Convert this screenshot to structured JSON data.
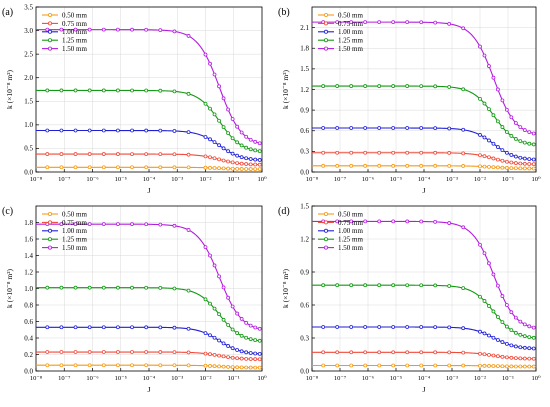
{
  "chart_data": [
    {
      "type": "line",
      "panel_label": "(a)",
      "xlabel": "J",
      "ylabel": "k (×10⁻⁸ m²)",
      "x_scale": "log",
      "xlim": [
        1e-08,
        1
      ],
      "ylim": [
        0,
        3.5
      ],
      "yticks": [
        0,
        0.5,
        1.0,
        1.5,
        2.0,
        2.5,
        3.0,
        3.5
      ],
      "yticks_labels": [
        "0.0",
        "0.5",
        "1.0",
        "1.5",
        "2.0",
        "2.5",
        "3.0",
        "3.5"
      ],
      "xticks_labels": [
        "10⁻⁸",
        "10⁻⁷",
        "10⁻⁶",
        "10⁻⁵",
        "10⁻⁴",
        "10⁻³",
        "10⁻²",
        "10⁻¹",
        "10⁰"
      ],
      "grid": true,
      "legend": "top-left",
      "series": [
        {
          "name": "0.50 mm",
          "color": "#f59a16",
          "plateau": 0.1,
          "end": 0.06
        },
        {
          "name": "0.75 mm",
          "color": "#f04a3a",
          "plateau": 0.38,
          "end": 0.15
        },
        {
          "name": "1.00 mm",
          "color": "#1f1fd6",
          "plateau": 0.88,
          "end": 0.24
        },
        {
          "name": "1.25 mm",
          "color": "#139913",
          "plateau": 1.73,
          "end": 0.41
        },
        {
          "name": "1.50 mm",
          "color": "#b41de0",
          "plateau": 3.02,
          "end": 0.55
        }
      ]
    },
    {
      "type": "line",
      "panel_label": "(b)",
      "xlabel": "J",
      "ylabel": "k (×10⁻⁸ m²)",
      "x_scale": "log",
      "xlim": [
        1e-08,
        1
      ],
      "ylim": [
        0,
        2.4
      ],
      "yticks": [
        0,
        0.3,
        0.6,
        0.9,
        1.2,
        1.5,
        1.8,
        2.1
      ],
      "yticks_labels": [
        "0.0",
        "0.3",
        "0.6",
        "0.9",
        "1.2",
        "1.5",
        "1.8",
        "2.1"
      ],
      "xticks_labels": [
        "10⁻⁸",
        "10⁻⁷",
        "10⁻⁶",
        "10⁻⁵",
        "10⁻⁴",
        "10⁻³",
        "10⁻²",
        "10⁻¹",
        "10⁰"
      ],
      "grid": true,
      "legend": "top-left",
      "series": [
        {
          "name": "0.50 mm",
          "color": "#f59a16",
          "plateau": 0.09,
          "end": 0.05
        },
        {
          "name": "0.75 mm",
          "color": "#f04a3a",
          "plateau": 0.28,
          "end": 0.11
        },
        {
          "name": "1.00 mm",
          "color": "#1f1fd6",
          "plateau": 0.64,
          "end": 0.17
        },
        {
          "name": "1.25 mm",
          "color": "#139913",
          "plateau": 1.25,
          "end": 0.38
        },
        {
          "name": "1.50 mm",
          "color": "#b41de0",
          "plateau": 2.18,
          "end": 0.52
        }
      ]
    },
    {
      "type": "line",
      "panel_label": "(c)",
      "xlabel": "J",
      "ylabel": "k (×10⁻⁸ m²)",
      "x_scale": "log",
      "xlim": [
        1e-08,
        1
      ],
      "ylim": [
        0,
        2.0
      ],
      "yticks": [
        0,
        0.2,
        0.4,
        0.6,
        0.8,
        1.0,
        1.2,
        1.4,
        1.6,
        1.8
      ],
      "yticks_labels": [
        "0.0",
        "0.2",
        "0.4",
        "0.6",
        "0.8",
        "1.0",
        "1.2",
        "1.4",
        "1.6",
        "1.8"
      ],
      "xticks_labels": [
        "10⁻⁸",
        "10⁻⁷",
        "10⁻⁶",
        "10⁻⁵",
        "10⁻⁴",
        "10⁻³",
        "10⁻²",
        "10⁻¹",
        "10⁰"
      ],
      "grid": true,
      "legend": "top-left",
      "series": [
        {
          "name": "0.50 mm",
          "color": "#f59a16",
          "plateau": 0.07,
          "end": 0.04
        },
        {
          "name": "0.75 mm",
          "color": "#f04a3a",
          "plateau": 0.23,
          "end": 0.14
        },
        {
          "name": "1.00 mm",
          "color": "#1f1fd6",
          "plateau": 0.53,
          "end": 0.2
        },
        {
          "name": "1.25 mm",
          "color": "#139913",
          "plateau": 1.01,
          "end": 0.35
        },
        {
          "name": "1.50 mm",
          "color": "#b41de0",
          "plateau": 1.78,
          "end": 0.48
        }
      ]
    },
    {
      "type": "line",
      "panel_label": "(d)",
      "xlabel": "J",
      "ylabel": "k (×10⁻⁸ m²)",
      "x_scale": "log",
      "xlim": [
        1e-08,
        1
      ],
      "ylim": [
        0,
        1.5
      ],
      "yticks": [
        0,
        0.3,
        0.6,
        0.9,
        1.2,
        1.5
      ],
      "yticks_labels": [
        "0.0",
        "0.3",
        "0.6",
        "0.9",
        "1.2",
        "1.5"
      ],
      "xticks_labels": [
        "10⁻⁸",
        "10⁻⁷",
        "10⁻⁶",
        "10⁻⁵",
        "10⁻⁴",
        "10⁻³",
        "10⁻²",
        "10⁻¹",
        "10⁰"
      ],
      "grid": true,
      "legend": "top-left",
      "series": [
        {
          "name": "0.50 mm",
          "color": "#f59a16",
          "plateau": 0.05,
          "end": 0.04
        },
        {
          "name": "0.75 mm",
          "color": "#f04a3a",
          "plateau": 0.17,
          "end": 0.11
        },
        {
          "name": "1.00 mm",
          "color": "#1f1fd6",
          "plateau": 0.4,
          "end": 0.2
        },
        {
          "name": "1.25 mm",
          "color": "#139913",
          "plateau": 0.78,
          "end": 0.29
        },
        {
          "name": "1.50 mm",
          "color": "#b41de0",
          "plateau": 1.36,
          "end": 0.37
        }
      ]
    }
  ]
}
